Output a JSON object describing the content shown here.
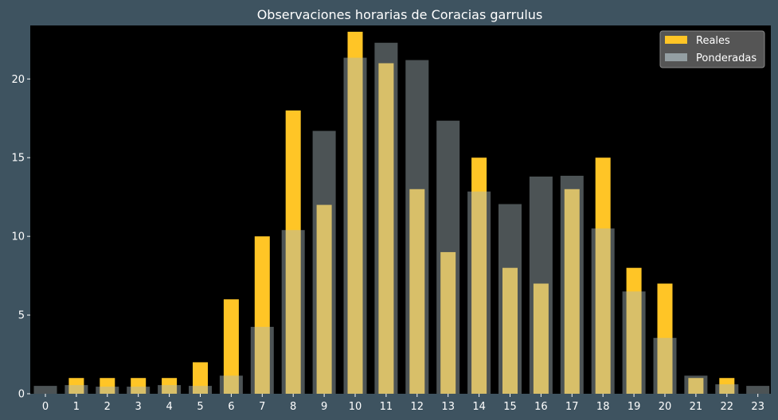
{
  "chart_data": {
    "type": "bar",
    "title": "Observaciones horarias de Coracias garrulus",
    "xlabel": "",
    "ylabel": "",
    "categories": [
      "0",
      "1",
      "2",
      "3",
      "4",
      "5",
      "6",
      "7",
      "8",
      "9",
      "10",
      "11",
      "12",
      "13",
      "14",
      "15",
      "16",
      "17",
      "18",
      "19",
      "20",
      "21",
      "22",
      "23"
    ],
    "series": [
      {
        "name": "Reales",
        "color": "#ffc526",
        "values": [
          0,
          1,
          1,
          1,
          1,
          2,
          6,
          10,
          18,
          12,
          23,
          21,
          13,
          9,
          15,
          8,
          7,
          13,
          15,
          8,
          7,
          1,
          1,
          0
        ]
      },
      {
        "name": "Ponderadas",
        "color": "#a9b8bd",
        "opacity": 0.45,
        "values": [
          0.5,
          0.55,
          0.45,
          0.45,
          0.55,
          0.5,
          1.15,
          4.25,
          10.4,
          16.7,
          21.35,
          22.3,
          21.2,
          17.35,
          12.85,
          12.05,
          13.8,
          13.85,
          10.5,
          6.5,
          3.55,
          1.15,
          0.6,
          0.5
        ]
      }
    ],
    "yticks": [
      0,
      5,
      10,
      15,
      20
    ],
    "ylim": [
      0,
      23.4
    ],
    "grid": false,
    "legend_position": "top-right",
    "background": "#000000",
    "figure_background": "#3e5360"
  }
}
